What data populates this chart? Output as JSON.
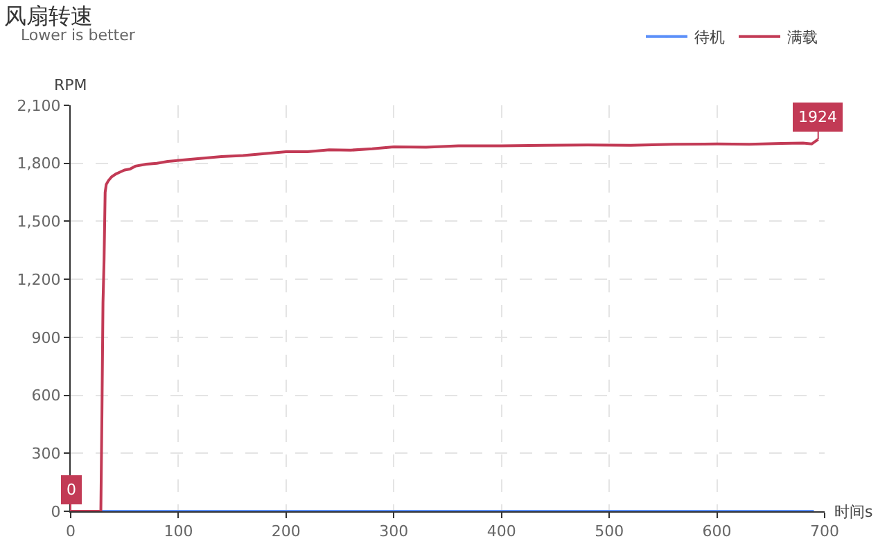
{
  "chart_data": {
    "type": "line",
    "title": "风扇转速",
    "subtitle": "Lower is better",
    "xlabel": "时间s",
    "ylabel": "RPM",
    "xlim": [
      0,
      700
    ],
    "xticks": [
      0,
      100,
      200,
      300,
      400,
      500,
      600,
      700
    ],
    "ylim": [
      0,
      2100
    ],
    "yticks": [
      0,
      300,
      600,
      900,
      {
        "value": 1200,
        "label": "1,200"
      },
      {
        "value": 1500,
        "label": "1,500"
      },
      {
        "value": 1800,
        "label": "1,800"
      },
      {
        "value": 2100,
        "label": "2,100"
      }
    ],
    "grid": true,
    "legend": "top right",
    "line_style": "solid",
    "series": [
      {
        "name": "待机",
        "color": "#5b8ff9",
        "x": [
          0,
          690
        ],
        "values": [
          0,
          0
        ]
      },
      {
        "name": "满载",
        "color": "#c23a55",
        "x": [
          0,
          28,
          29,
          30,
          31,
          32,
          33,
          35,
          38,
          42,
          46,
          50,
          55,
          60,
          70,
          80,
          90,
          100,
          120,
          140,
          160,
          180,
          200,
          220,
          240,
          260,
          280,
          300,
          330,
          360,
          400,
          440,
          480,
          520,
          560,
          600,
          630,
          660,
          680,
          688,
          694
        ],
        "values": [
          0,
          0,
          500,
          1080,
          1300,
          1650,
          1690,
          1710,
          1730,
          1745,
          1755,
          1765,
          1770,
          1785,
          1795,
          1800,
          1810,
          1815,
          1825,
          1835,
          1840,
          1850,
          1860,
          1860,
          1870,
          1868,
          1875,
          1885,
          1883,
          1890,
          1890,
          1893,
          1895,
          1893,
          1898,
          1900,
          1898,
          1903,
          1905,
          1900,
          1924
        ]
      }
    ],
    "annotations": [
      {
        "text": "0",
        "x": 0,
        "y": 0
      },
      {
        "text": "1924",
        "x": 694,
        "y": 1924
      }
    ]
  }
}
